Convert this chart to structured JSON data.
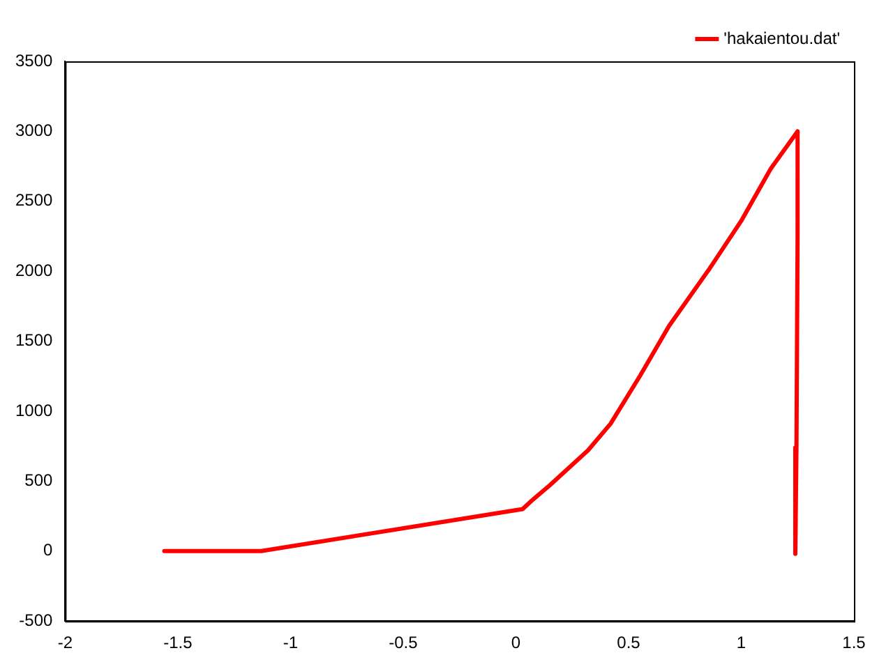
{
  "chart_data": {
    "type": "line",
    "xlim": [
      -2,
      1.5
    ],
    "xticks": [
      -2,
      -1.5,
      -1,
      -0.5,
      0,
      0.5,
      1,
      1.5
    ],
    "ylim": [
      -500,
      3500
    ],
    "yticks": [
      -500,
      0,
      500,
      1000,
      1500,
      2000,
      2500,
      3000,
      3500
    ],
    "legend": "top right",
    "grid": false,
    "marker": "none",
    "line_style": "solid",
    "series": [
      {
        "name": "'hakaientou.dat'",
        "color": "#ff0000",
        "x": [
          -1.56,
          -1.13,
          0.03,
          0.07,
          0.15,
          0.32,
          0.42,
          0.55,
          0.68,
          0.86,
          1.0,
          1.13,
          1.25,
          1.25,
          1.245,
          1.24
        ],
        "values": [
          0,
          0,
          300,
          360,
          470,
          720,
          910,
          1250,
          1610,
          2020,
          2360,
          2730,
          3000,
          2250,
          740,
          -20
        ]
      }
    ]
  }
}
